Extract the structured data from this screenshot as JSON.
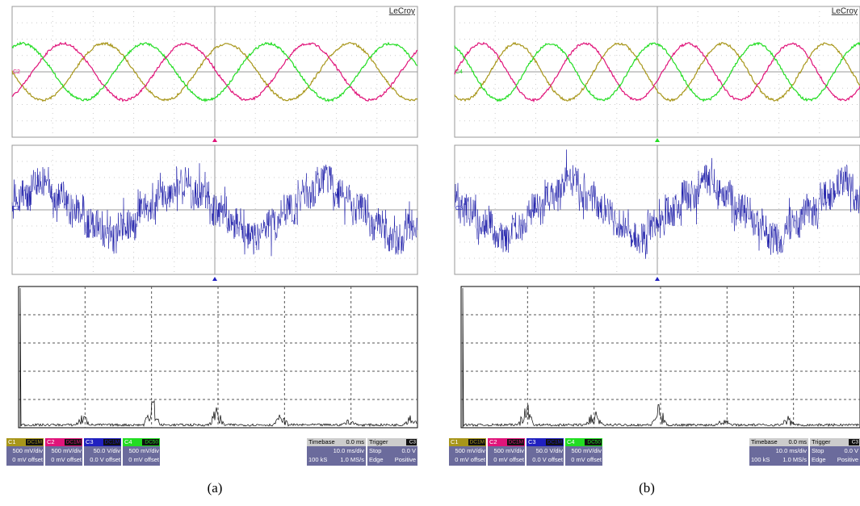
{
  "panels": [
    {
      "brand": "LeCroy",
      "trace_labels": {
        "top": "C2",
        "middle": "C3"
      },
      "channels": [
        {
          "name": "C1",
          "coupling": "DC1M",
          "scale": "500 mV/div",
          "offset": "0 mV offset"
        },
        {
          "name": "C2",
          "coupling": "DC1M",
          "scale": "500 mV/div",
          "offset": "0 mV offset"
        },
        {
          "name": "C3",
          "coupling": "DC1M",
          "scale": "50.0 V/div",
          "offset": "0.0 V offset"
        },
        {
          "name": "C4",
          "coupling": "DC50",
          "scale": "500 mV/div",
          "offset": "0 mV offset"
        }
      ],
      "timebase": {
        "label": "Timebase",
        "value": "0.0 ms",
        "scale": "10.0 ms/div",
        "samples": "100 kS",
        "rate": "1.0 MS/s"
      },
      "trigger": {
        "label": "Trigger",
        "source": "C3",
        "mode": "Stop",
        "level": "0.0 V",
        "type": "Edge",
        "slope": "Positive"
      },
      "caption": "(a)"
    },
    {
      "brand": "LeCroy",
      "trace_labels": {
        "top": "C4",
        "middle": "C3"
      },
      "channels": [
        {
          "name": "C1",
          "coupling": "DC1M",
          "scale": "500 mV/div",
          "offset": "0 mV offset"
        },
        {
          "name": "C2",
          "coupling": "DC1M",
          "scale": "500 mV/div",
          "offset": "0 mV offset"
        },
        {
          "name": "C3",
          "coupling": "DC1M",
          "scale": "50.0 V/div",
          "offset": "0.0 V offset"
        },
        {
          "name": "C4",
          "coupling": "DC50",
          "scale": "500 mV/div",
          "offset": "0 mV offset"
        }
      ],
      "timebase": {
        "label": "Timebase",
        "value": "0.0 ms",
        "scale": "10.0 ms/div",
        "samples": "100 kS",
        "rate": "1.0 MS/s"
      },
      "trigger": {
        "label": "Trigger",
        "source": "C3",
        "mode": "Stop",
        "level": "0.0 V",
        "type": "Edge",
        "slope": "Positive"
      },
      "caption": "(b)"
    }
  ]
}
